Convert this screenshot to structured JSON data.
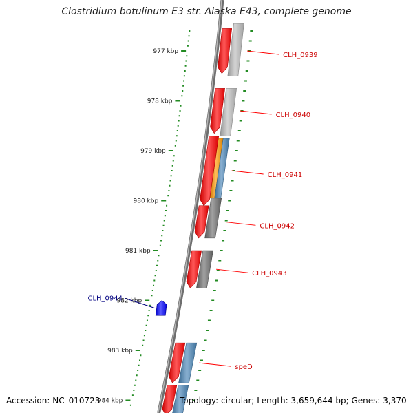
{
  "title": "Clostridium botulinum E3 str. Alaska E43, complete genome",
  "accession": "Accession: NC_010723",
  "summary": "Topology: circular; Length: 3,659,644 bp; Genes: 3,370",
  "colors": {
    "backbone": "#8a8a8a",
    "tick": "#228b22",
    "gene_forward": "#ff0000",
    "gene_reverse": "#0000ff",
    "label_forward": "#cc0000",
    "label_reverse": "#000080",
    "feature_gray_light": "#bdbdbd",
    "feature_gray_dark": "#6f6f6f",
    "feature_orange": "#ff9900",
    "feature_steelblue": "#4a86b8"
  },
  "scale": {
    "unit": "kbp",
    "ticks": [
      {
        "value": 977,
        "label": "977 kbp"
      },
      {
        "value": 978,
        "label": "978 kbp"
      },
      {
        "value": 979,
        "label": "979 kbp"
      },
      {
        "value": 980,
        "label": "980 kbp"
      },
      {
        "value": 981,
        "label": "981 kbp"
      },
      {
        "value": 982,
        "label": "982 kbp"
      },
      {
        "value": 983,
        "label": "983 kbp"
      },
      {
        "value": 984,
        "label": "984 kbp"
      }
    ]
  },
  "genes": [
    {
      "label": "CLH_0939",
      "strand": "forward",
      "start_kbp": 976.55,
      "end_kbp": 977.45,
      "track": "inner"
    },
    {
      "label": "CLH_0940",
      "strand": "forward",
      "start_kbp": 977.75,
      "end_kbp": 978.65,
      "track": "inner"
    },
    {
      "label": "CLH_0941",
      "strand": "forward",
      "start_kbp": 978.7,
      "end_kbp": 980.1,
      "track": "inner"
    },
    {
      "label": "CLH_0942",
      "strand": "forward",
      "start_kbp": 980.1,
      "end_kbp": 980.75,
      "track": "inner"
    },
    {
      "label": "CLH_0943",
      "strand": "forward",
      "start_kbp": 981.0,
      "end_kbp": 981.75,
      "track": "inner"
    },
    {
      "label": "CLH_0944",
      "strand": "reverse",
      "start_kbp": 982.0,
      "end_kbp": 982.3,
      "track": "outer"
    },
    {
      "label": "speD",
      "strand": "forward",
      "start_kbp": 982.85,
      "end_kbp": 983.65,
      "track": "inner"
    },
    {
      "label": "",
      "strand": "forward",
      "start_kbp": 983.7,
      "end_kbp": 984.3,
      "track": "inner"
    }
  ],
  "features": [
    {
      "kind": "gray_light",
      "start_kbp": 976.45,
      "end_kbp": 977.5
    },
    {
      "kind": "gray_light",
      "start_kbp": 977.75,
      "end_kbp": 978.7
    },
    {
      "kind": "orange",
      "start_kbp": 978.75,
      "end_kbp": 979.95
    },
    {
      "kind": "steelblue",
      "start_kbp": 978.75,
      "end_kbp": 979.95
    },
    {
      "kind": "gray_dark",
      "start_kbp": 979.95,
      "end_kbp": 980.75
    },
    {
      "kind": "gray_dark",
      "start_kbp": 981.0,
      "end_kbp": 981.75
    },
    {
      "kind": "steelblue",
      "start_kbp": 982.85,
      "end_kbp": 983.65
    },
    {
      "kind": "steelblue",
      "start_kbp": 983.7,
      "end_kbp": 984.3
    }
  ]
}
